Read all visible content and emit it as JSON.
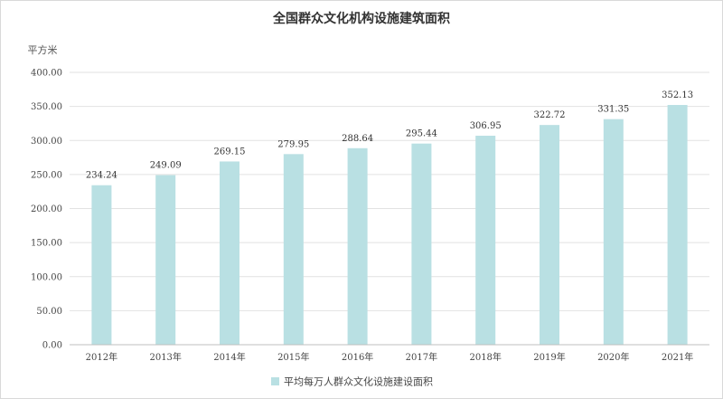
{
  "chart_data": {
    "type": "bar",
    "title": "全国群众文化机构设施建筑面积",
    "ylabel": "平方米",
    "xlabel": "",
    "categories": [
      "2012年",
      "2013年",
      "2014年",
      "2015年",
      "2016年",
      "2017年",
      "2018年",
      "2019年",
      "2020年",
      "2021年"
    ],
    "series": [
      {
        "name": "平均每万人群众文化设施建设面积",
        "values": [
          234.24,
          249.09,
          269.15,
          279.95,
          288.64,
          295.44,
          306.95,
          322.72,
          331.35,
          352.13
        ],
        "color": "#b9e0e3"
      }
    ],
    "value_labels": [
      "234.24",
      "249.09",
      "269.15",
      "279.95",
      "288.64",
      "295.44",
      "306.95",
      "322.72",
      "331.35",
      "352.13"
    ],
    "ylim": [
      0,
      400
    ],
    "yticks": [
      "0.00",
      "50.00",
      "100.00",
      "150.00",
      "200.00",
      "250.00",
      "300.00",
      "350.00",
      "400.00"
    ],
    "grid": true,
    "legend_position": "bottom"
  }
}
